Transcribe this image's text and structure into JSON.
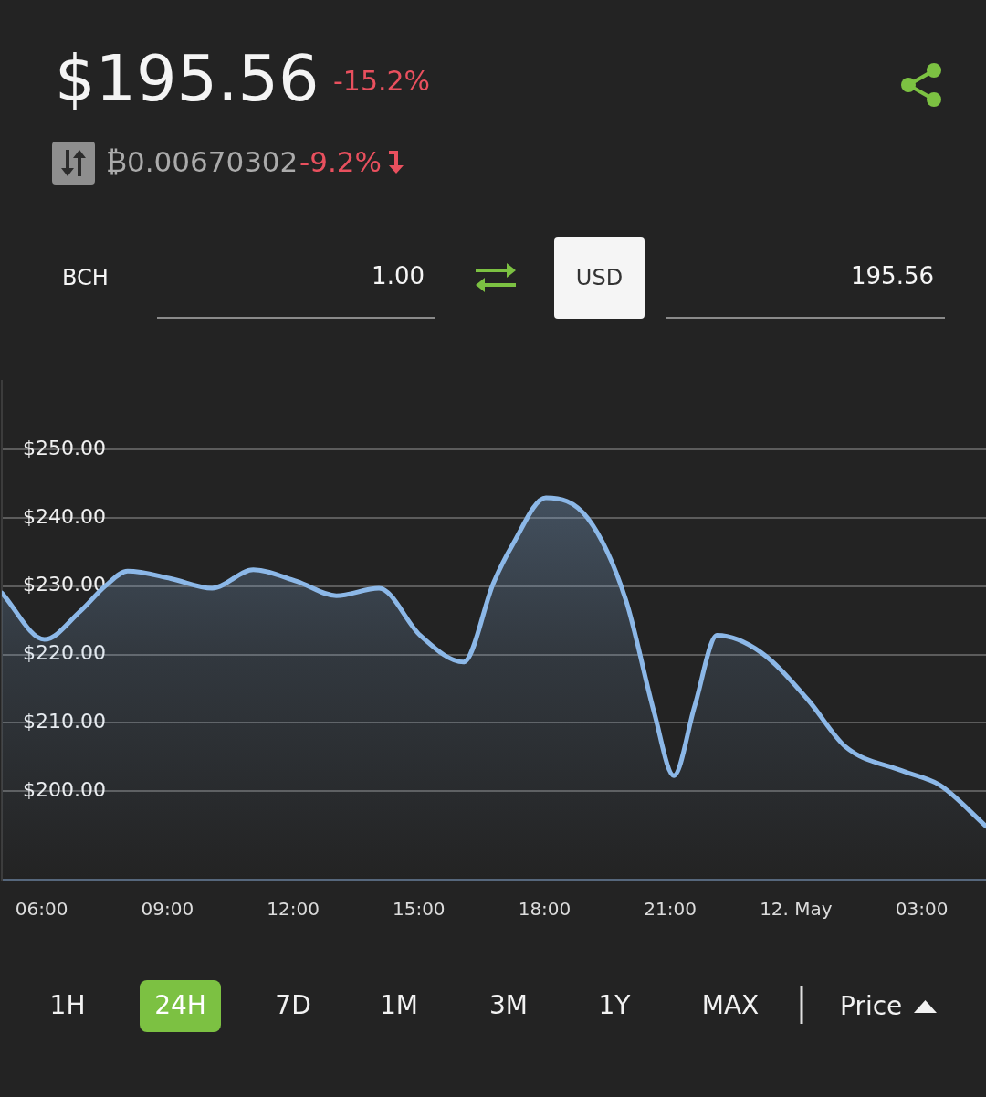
{
  "chart_data": {
    "type": "area",
    "title": "$195.56",
    "annotations": [
      "-15.2%",
      "₿0.00670302",
      "-9.2%",
      "BCH",
      "1.00",
      "USD",
      "195.56",
      "1H",
      "24H",
      "7D",
      "1M",
      "3M",
      "1Y",
      "MAX",
      "Price"
    ],
    "x": [
      "--05-11T05:03",
      "--05-11T06:04",
      "--05-11T06:55",
      "--05-11T07:31",
      "--05-11T08:03",
      "--05-11T09:05",
      "--05-11T10:04",
      "--05-11T11:03",
      "--05-11T12:05",
      "--05-11T13:02",
      "--05-11T14:03",
      "--05-11T15:02",
      "--05-11T16:04",
      "--05-11T16:47",
      "--05-11T17:14",
      "--05-11T18:02",
      "--05-11T19:02",
      "--05-11T19:56",
      "--05-11T20:37",
      "--05-11T21:05",
      "--05-11T21:35",
      "--05-11T22:07",
      "--05-11T23:10",
      "--05-12T00:17",
      "--05-12T01:11",
      "--05-12T02:32",
      "--05-12T03:26",
      "--05-12T04:32"
    ],
    "values": [
      229.0,
      222.2,
      226.3,
      230.0,
      232.2,
      231.1,
      229.7,
      232.4,
      230.7,
      228.6,
      229.7,
      222.8,
      218.9,
      230.5,
      236.0,
      242.9,
      239.9,
      228.1,
      211.5,
      202.3,
      212.5,
      222.8,
      220.3,
      213.4,
      206.5,
      203.0,
      200.9,
      194.9
    ],
    "color": "#8cb8e8",
    "xlim": [
      "--05-11T05:03",
      "--05-12T04:32"
    ],
    "xticks": [
      {
        "value": "--05-11T06:00",
        "label": "06:00"
      },
      {
        "value": "--05-11T09:00",
        "label": "09:00"
      },
      {
        "value": "--05-11T12:00",
        "label": "12:00"
      },
      {
        "value": "--05-11T15:00",
        "label": "15:00"
      },
      {
        "value": "--05-11T18:00",
        "label": "18:00"
      },
      {
        "value": "--05-11T21:00",
        "label": "21:00"
      },
      {
        "value": "--05-12T00:00",
        "label": "12. May"
      },
      {
        "value": "--05-12T03:00",
        "label": "03:00"
      }
    ],
    "ylim": [
      187.1,
      260
    ],
    "yticks": [
      {
        "value": 200,
        "label": "$200.00"
      },
      {
        "value": 210,
        "label": "$210.00"
      },
      {
        "value": 220,
        "label": "$220.00"
      },
      {
        "value": 230,
        "label": "$230.00"
      },
      {
        "value": 240,
        "label": "$240.00"
      },
      {
        "value": 250,
        "label": "$250.00"
      }
    ],
    "grid": "y",
    "marker": "none",
    "line_style": "solid"
  }
}
